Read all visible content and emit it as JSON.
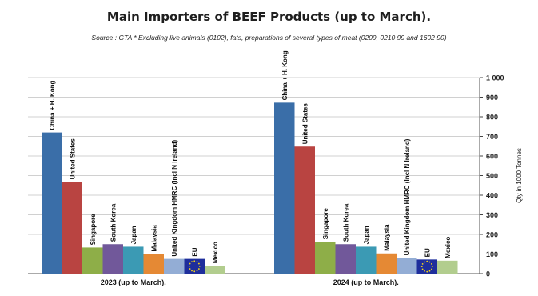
{
  "chart_data": {
    "type": "bar",
    "title": "Main Importers of BEEF Products (up to March).",
    "subtitle": "Source : GTA * Excluding live animals (0102), fats, preparations  of several types of meat (0209, 0210 99 and 1602 90)",
    "ylabel": "Qty in 1000 Tonnes",
    "ylim": [
      0,
      1000
    ],
    "y_ticks": [
      "0",
      "100",
      "200",
      "300",
      "400",
      "500",
      "600",
      "700",
      "800",
      "900",
      "1 000"
    ],
    "y_axis_position": "right",
    "grid": true,
    "legend": "none",
    "categories": [
      "2023 (up to March).",
      "2024 (up to March)."
    ],
    "series": [
      {
        "name": "China + H. Kong",
        "color": "#3a6ea8",
        "values": [
          720,
          872
        ]
      },
      {
        "name": "United States",
        "color": "#b94441",
        "values": [
          468,
          648
        ]
      },
      {
        "name": "Singapore",
        "color": "#8eae48",
        "values": [
          133,
          162
        ]
      },
      {
        "name": "South Korea",
        "color": "#71589a",
        "values": [
          150,
          150
        ]
      },
      {
        "name": "Japan",
        "color": "#3b9ab4",
        "values": [
          137,
          137
        ]
      },
      {
        "name": "Malaysia",
        "color": "#e58934",
        "values": [
          100,
          103
        ]
      },
      {
        "name": "United Kingdom HMRC (Incl N Ireland)",
        "color": "#93add5",
        "values": [
          75,
          80
        ]
      },
      {
        "name": "EU",
        "color": "#1e2e9c",
        "values": [
          75,
          72
        ]
      },
      {
        "name": "Mexico",
        "color": "#b2cd8e",
        "values": [
          40,
          66
        ]
      }
    ]
  }
}
